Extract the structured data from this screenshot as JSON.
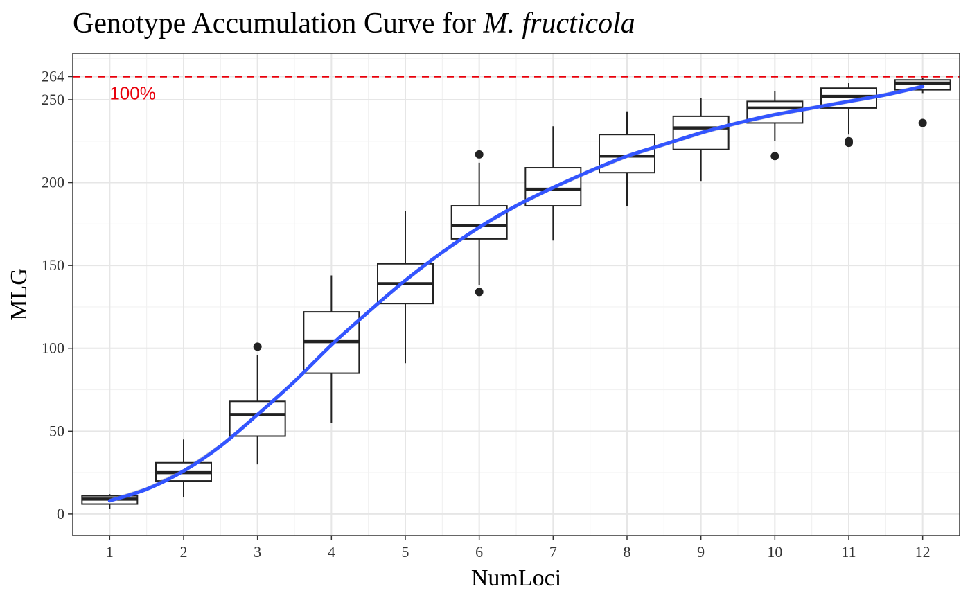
{
  "chart_data": {
    "type": "box",
    "title": "Genotype Accumulation Curve for ",
    "title_species": "M. fructicola",
    "xlabel": "NumLoci",
    "ylabel": "MLG",
    "categories": [
      "1",
      "2",
      "3",
      "4",
      "5",
      "6",
      "7",
      "8",
      "9",
      "10",
      "11",
      "12"
    ],
    "x_ticks": [
      1,
      2,
      3,
      4,
      5,
      6,
      7,
      8,
      9,
      10,
      11,
      12
    ],
    "y_ticks": [
      0,
      50,
      100,
      150,
      200,
      250,
      264
    ],
    "xlim": [
      0.5,
      12.5
    ],
    "ylim": [
      -13,
      278
    ],
    "grid": true,
    "boxes": [
      {
        "x": 1,
        "lower_whisker": 3,
        "q1": 6,
        "median": 9,
        "q3": 11,
        "upper_whisker": 12,
        "outliers": []
      },
      {
        "x": 2,
        "lower_whisker": 10,
        "q1": 20,
        "median": 25,
        "q3": 31,
        "upper_whisker": 45,
        "outliers": []
      },
      {
        "x": 3,
        "lower_whisker": 30,
        "q1": 47,
        "median": 60,
        "q3": 68,
        "upper_whisker": 96,
        "outliers": [
          101
        ]
      },
      {
        "x": 4,
        "lower_whisker": 55,
        "q1": 85,
        "median": 104,
        "q3": 122,
        "upper_whisker": 144,
        "outliers": []
      },
      {
        "x": 5,
        "lower_whisker": 91,
        "q1": 127,
        "median": 139,
        "q3": 151,
        "upper_whisker": 183,
        "outliers": []
      },
      {
        "x": 6,
        "lower_whisker": 138,
        "q1": 166,
        "median": 174,
        "q3": 186,
        "upper_whisker": 212,
        "outliers": [
          134,
          217
        ]
      },
      {
        "x": 7,
        "lower_whisker": 165,
        "q1": 186,
        "median": 196,
        "q3": 209,
        "upper_whisker": 234,
        "outliers": []
      },
      {
        "x": 8,
        "lower_whisker": 186,
        "q1": 206,
        "median": 216,
        "q3": 229,
        "upper_whisker": 243,
        "outliers": []
      },
      {
        "x": 9,
        "lower_whisker": 201,
        "q1": 220,
        "median": 233,
        "q3": 240,
        "upper_whisker": 251,
        "outliers": []
      },
      {
        "x": 10,
        "lower_whisker": 225,
        "q1": 236,
        "median": 245,
        "q3": 249,
        "upper_whisker": 255,
        "outliers": [
          216
        ]
      },
      {
        "x": 11,
        "lower_whisker": 229,
        "q1": 245,
        "median": 252,
        "q3": 257,
        "upper_whisker": 260,
        "outliers": [
          224,
          225
        ]
      },
      {
        "x": 12,
        "lower_whisker": 254,
        "q1": 256,
        "median": 260,
        "q3": 262,
        "upper_whisker": 263,
        "outliers": [
          236
        ]
      }
    ],
    "smooth": {
      "color": "#3355ff",
      "x": [
        1,
        1.5,
        2,
        2.5,
        3,
        3.5,
        4,
        4.5,
        5,
        5.5,
        6,
        6.5,
        7,
        7.5,
        8,
        8.5,
        9,
        9.5,
        10,
        10.5,
        11,
        11.5,
        12
      ],
      "y": [
        8,
        15,
        26,
        41,
        60,
        80,
        102,
        122,
        141,
        158,
        173,
        186,
        197,
        207,
        216,
        223,
        230,
        236,
        241,
        245,
        249,
        253,
        258
      ]
    },
    "reference_line": {
      "y": 264,
      "label": "100%",
      "color": "#e8000b",
      "style": "dashed"
    },
    "colors": {
      "box": "#222222",
      "panel_border": "#333333",
      "grid_major": "#e6e6e6",
      "grid_minor": "#f2f2f2"
    }
  }
}
